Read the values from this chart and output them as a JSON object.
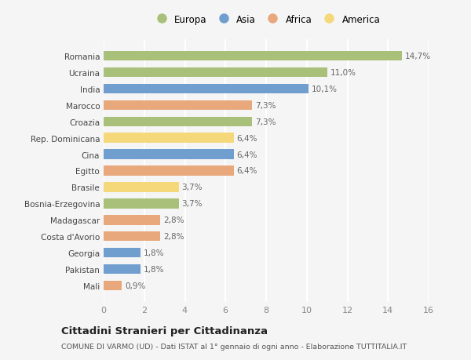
{
  "countries": [
    "Romania",
    "Ucraina",
    "India",
    "Marocco",
    "Croazia",
    "Rep. Dominicana",
    "Cina",
    "Egitto",
    "Brasile",
    "Bosnia-Erzegovina",
    "Madagascar",
    "Costa d'Avorio",
    "Georgia",
    "Pakistan",
    "Mali"
  ],
  "values": [
    14.7,
    11.0,
    10.1,
    7.3,
    7.3,
    6.4,
    6.4,
    6.4,
    3.7,
    3.7,
    2.8,
    2.8,
    1.8,
    1.8,
    0.9
  ],
  "labels": [
    "14,7%",
    "11,0%",
    "10,1%",
    "7,3%",
    "7,3%",
    "6,4%",
    "6,4%",
    "6,4%",
    "3,7%",
    "3,7%",
    "2,8%",
    "2,8%",
    "1,8%",
    "1,8%",
    "0,9%"
  ],
  "continents": [
    "Europa",
    "Europa",
    "Asia",
    "Africa",
    "Europa",
    "America",
    "Asia",
    "Africa",
    "America",
    "Europa",
    "Africa",
    "Africa",
    "Asia",
    "Asia",
    "Africa"
  ],
  "colors": {
    "Europa": "#a8c07a",
    "Asia": "#6f9ecf",
    "Africa": "#e8a87c",
    "America": "#f5d87a"
  },
  "legend_order": [
    "Europa",
    "Asia",
    "Africa",
    "America"
  ],
  "xlim": [
    0,
    16
  ],
  "xticks": [
    0,
    2,
    4,
    6,
    8,
    10,
    12,
    14,
    16
  ],
  "title": "Cittadini Stranieri per Cittadinanza",
  "subtitle": "COMUNE DI VARMO (UD) - Dati ISTAT al 1° gennaio di ogni anno - Elaborazione TUTTITALIA.IT",
  "bg_color": "#f5f5f5",
  "grid_color": "#ffffff",
  "bar_height": 0.6
}
